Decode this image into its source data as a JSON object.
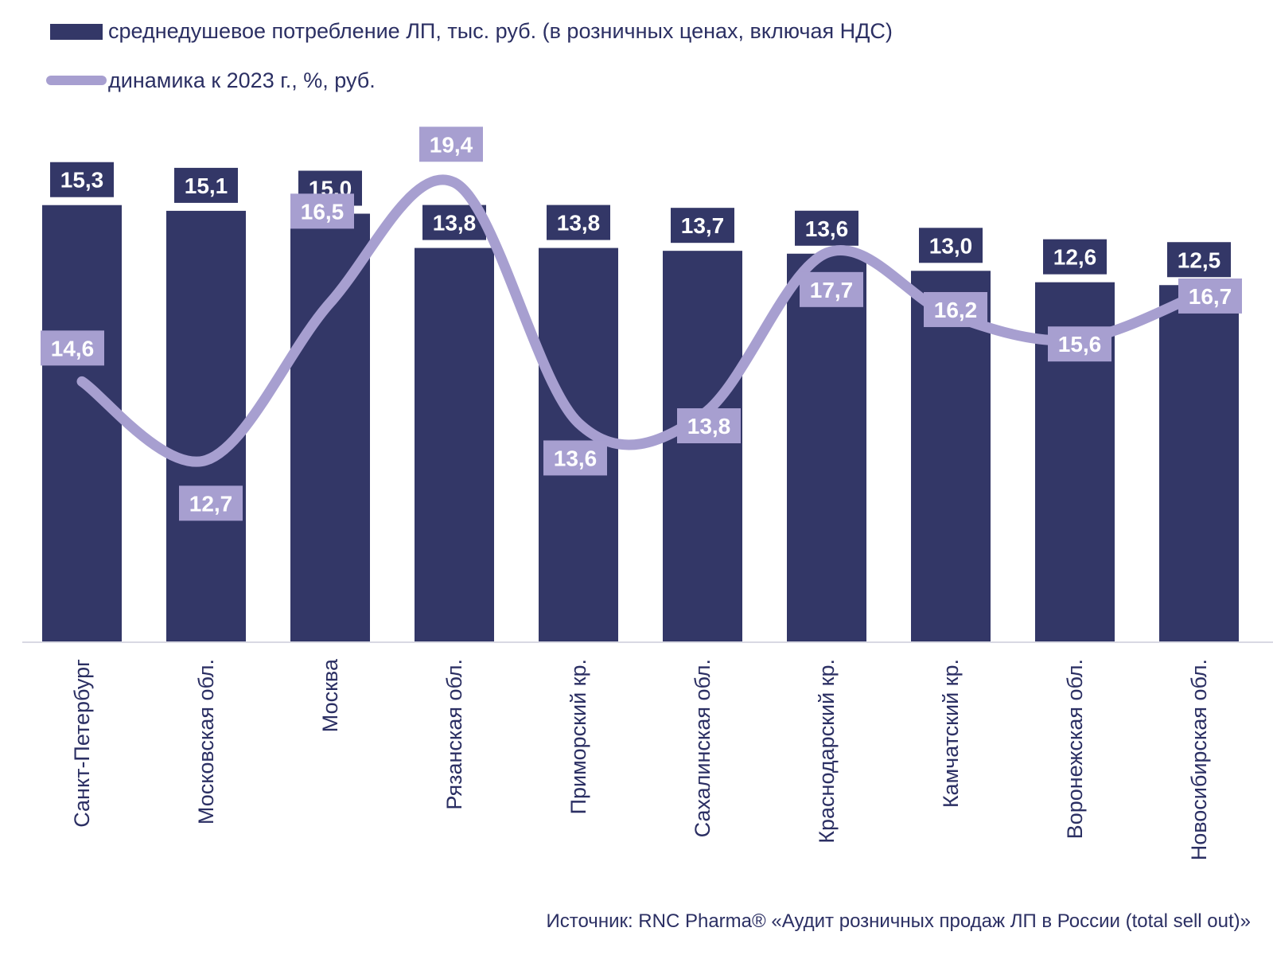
{
  "chart_data": {
    "type": "bar",
    "categories": [
      "Санкт-Петербург",
      "Московская обл.",
      "Москва",
      "Рязанская обл.",
      "Приморский кр.",
      "Сахалинская обл.",
      "Краснодарский кр.",
      "Камчатский кр.",
      "Воронежская обл.",
      "Новосибирская обл."
    ],
    "series": [
      {
        "name": "среднедушевое потребление ЛП, тыс. руб. (в розничных ценах, включая НДС)",
        "kind": "bar",
        "color": "#333767",
        "values": [
          15.3,
          15.1,
          15.0,
          13.8,
          13.8,
          13.7,
          13.6,
          13.0,
          12.6,
          12.5
        ],
        "labels": [
          "15,3",
          "15,1",
          "15,0",
          "13,8",
          "13,8",
          "13,7",
          "13,6",
          "13,0",
          "12,6",
          "12,5"
        ]
      },
      {
        "name": "динамика к 2023 г., %, руб.",
        "kind": "line",
        "color": "#a79fd0",
        "values": [
          14.6,
          12.7,
          16.5,
          19.4,
          13.6,
          13.8,
          17.7,
          16.2,
          15.6,
          16.7
        ],
        "labels": [
          "14,6",
          "12,7",
          "16,5",
          "19,4",
          "13,6",
          "13,8",
          "17,7",
          "16,2",
          "15,6",
          "16,7"
        ]
      }
    ],
    "legend_position": "top-left",
    "grid": false
  },
  "source_text": "Источник: RNC Pharma® «Аудит розничных продаж ЛП в России (total sell out)»"
}
